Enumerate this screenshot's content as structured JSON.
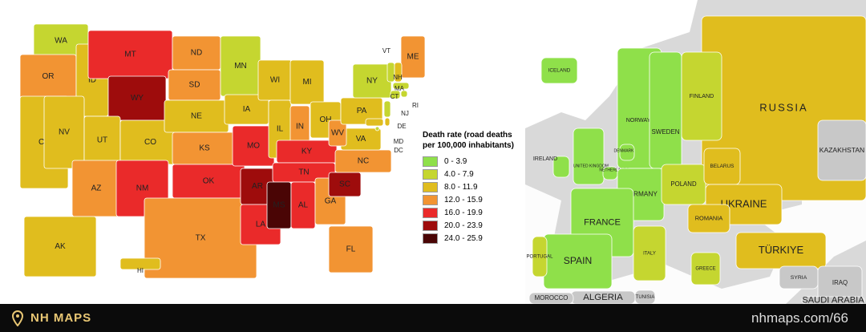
{
  "legend": {
    "title": "Death rate (road deaths per 100,000 inhabitants)",
    "items": [
      {
        "label": "0 - 3.9",
        "color": "#8fe04a"
      },
      {
        "label": "4.0 - 7.9",
        "color": "#c5d630"
      },
      {
        "label": "8.0 - 11.9",
        "color": "#e0bd1e"
      },
      {
        "label": "12.0 - 15.9",
        "color": "#f29433"
      },
      {
        "label": "16.0 - 19.9",
        "color": "#ea2a2a"
      },
      {
        "label": "20.0 - 23.9",
        "color": "#9e0c0c"
      },
      {
        "label": "24.0 - 25.9",
        "color": "#4a0505"
      }
    ]
  },
  "us_states": [
    {
      "label": "WA",
      "level": 1
    },
    {
      "label": "OR",
      "level": 3
    },
    {
      "label": "CA",
      "level": 2
    },
    {
      "label": "ID",
      "level": 2
    },
    {
      "label": "NV",
      "level": 2
    },
    {
      "label": "MT",
      "level": 4
    },
    {
      "label": "WY",
      "level": 5
    },
    {
      "label": "UT",
      "level": 2
    },
    {
      "label": "CO",
      "level": 2
    },
    {
      "label": "AZ",
      "level": 3
    },
    {
      "label": "NM",
      "level": 4
    },
    {
      "label": "ND",
      "level": 3
    },
    {
      "label": "SD",
      "level": 3
    },
    {
      "label": "NE",
      "level": 2
    },
    {
      "label": "KS",
      "level": 3
    },
    {
      "label": "OK",
      "level": 4
    },
    {
      "label": "TX",
      "level": 3
    },
    {
      "label": "MN",
      "level": 1
    },
    {
      "label": "IA",
      "level": 2
    },
    {
      "label": "MO",
      "level": 4
    },
    {
      "label": "AR",
      "level": 5
    },
    {
      "label": "LA",
      "level": 4
    },
    {
      "label": "WI",
      "level": 2
    },
    {
      "label": "IL",
      "level": 2
    },
    {
      "label": "MI",
      "level": 2
    },
    {
      "label": "IN",
      "level": 3
    },
    {
      "label": "OH",
      "level": 2
    },
    {
      "label": "KY",
      "level": 4
    },
    {
      "label": "TN",
      "level": 4
    },
    {
      "label": "MS",
      "level": 6
    },
    {
      "label": "AL",
      "level": 4
    },
    {
      "label": "GA",
      "level": 3
    },
    {
      "label": "FL",
      "level": 3
    },
    {
      "label": "SC",
      "level": 5
    },
    {
      "label": "NC",
      "level": 3
    },
    {
      "label": "VA",
      "level": 2
    },
    {
      "label": "WV",
      "level": 3
    },
    {
      "label": "PA",
      "level": 2
    },
    {
      "label": "NY",
      "level": 1
    },
    {
      "label": "ME",
      "level": 3
    },
    {
      "label": "VT",
      "level": 1
    },
    {
      "label": "NH",
      "level": 2
    },
    {
      "label": "MA",
      "level": 1
    },
    {
      "label": "CT",
      "level": 1
    },
    {
      "label": "RI",
      "level": 1
    },
    {
      "label": "NJ",
      "level": 1
    },
    {
      "label": "DE",
      "level": 2
    },
    {
      "label": "MD",
      "level": 2
    },
    {
      "label": "DC",
      "level": 1
    },
    {
      "label": "AK",
      "level": 2
    },
    {
      "label": "HI",
      "level": 2
    }
  ],
  "countries": [
    {
      "label": "RUSSIA",
      "level": 2
    },
    {
      "label": "KAZAKHSTAN",
      "level": null
    },
    {
      "label": "ICELAND",
      "level": 0
    },
    {
      "label": "NORWAY",
      "level": 0
    },
    {
      "label": "SWEDEN",
      "level": 0
    },
    {
      "label": "FINLAND",
      "level": 1
    },
    {
      "label": "IRELAND",
      "level": 0
    },
    {
      "label": "UNITED KINGDOM",
      "level": 0
    },
    {
      "label": "DENMARK",
      "level": 0
    },
    {
      "label": "NETHERLANDS",
      "level": 0
    },
    {
      "label": "GERMANY",
      "level": 0
    },
    {
      "label": "POLAND",
      "level": 1
    },
    {
      "label": "BELARUS",
      "level": 2
    },
    {
      "label": "UKRAINE",
      "level": 2
    },
    {
      "label": "FRANCE",
      "level": 0
    },
    {
      "label": "SPAIN",
      "level": 0
    },
    {
      "label": "PORTUGAL",
      "level": 1
    },
    {
      "label": "ITALY",
      "level": 1
    },
    {
      "label": "ROMANIA",
      "level": 2
    },
    {
      "label": "GREECE",
      "level": 1
    },
    {
      "label": "TÜRKIYE",
      "level": 2
    },
    {
      "label": "SYRIA",
      "level": null
    },
    {
      "label": "IRAQ",
      "level": null
    },
    {
      "label": "ALGERIA",
      "level": null
    },
    {
      "label": "MOROCCO",
      "level": null
    },
    {
      "label": "TUNISIA",
      "level": null
    },
    {
      "label": "SAUDI ARABIA",
      "level": null
    }
  ],
  "footer": {
    "brand": "NH MAPS",
    "url": "nhmaps.com/66"
  }
}
